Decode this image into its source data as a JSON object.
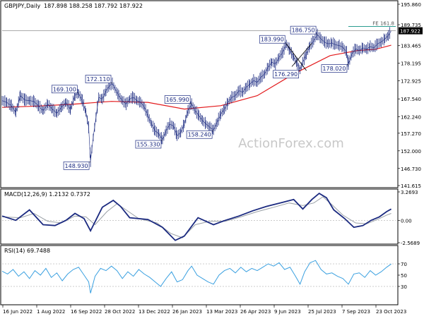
{
  "chart_data": [
    {
      "type": "line",
      "title": "GBPJPY,Daily",
      "quote": "187.898 188.258 187.792 187.922",
      "watermark": "ActionForex.com",
      "ylim": [
        141.615,
        195.86
      ],
      "y_ticks": [
        "195.860",
        "189.735",
        "183.465",
        "178.195",
        "172.925",
        "167.540",
        "162.240",
        "157.270",
        "152.000",
        "146.730",
        "141.615"
      ],
      "x_ticks": [
        "16 Jun 2022",
        "1 Aug 2022",
        "16 Sep 2022",
        "28 Oct 2022",
        "13 Dec 2022",
        "26 Jan 2023",
        "13 Mar 2023",
        "26 Apr 2023",
        "9 Jun 2023",
        "25 Jul 2023",
        "7 Sep 2023",
        "23 Oct 2023"
      ],
      "last_price": "187.922",
      "fe_label": "FE 161.8",
      "fe_value": 189.2,
      "price_path": [
        [
          0,
          167.0
        ],
        [
          5,
          166.5
        ],
        [
          10,
          165.5
        ],
        [
          15,
          163.5
        ],
        [
          20,
          168.5
        ],
        [
          25,
          167.2
        ],
        [
          30,
          167.0
        ],
        [
          35,
          166.8
        ],
        [
          40,
          165.4
        ],
        [
          45,
          164.0
        ],
        [
          50,
          166.0
        ],
        [
          55,
          164.5
        ],
        [
          60,
          163.2
        ],
        [
          65,
          165.0
        ],
        [
          70,
          166.5
        ],
        [
          75,
          164.3
        ],
        [
          80,
          168.7
        ],
        [
          84,
          169.1
        ],
        [
          88,
          167.0
        ],
        [
          92,
          163.5
        ],
        [
          95,
          159.0
        ],
        [
          97,
          148.93
        ],
        [
          100,
          156.0
        ],
        [
          103,
          162.0
        ],
        [
          106,
          168.0
        ],
        [
          110,
          167.5
        ],
        [
          114,
          170.0
        ],
        [
          118,
          171.5
        ],
        [
          121,
          172.11
        ],
        [
          124,
          170.5
        ],
        [
          128,
          168.5
        ],
        [
          132,
          167.0
        ],
        [
          136,
          166.0
        ],
        [
          140,
          167.5
        ],
        [
          144,
          168.0
        ],
        [
          148,
          167.0
        ],
        [
          152,
          166.5
        ],
        [
          156,
          165.2
        ],
        [
          160,
          162.5
        ],
        [
          164,
          160.0
        ],
        [
          168,
          158.0
        ],
        [
          172,
          157.0
        ],
        [
          176,
          155.33
        ],
        [
          180,
          158.0
        ],
        [
          184,
          160.0
        ],
        [
          188,
          159.5
        ],
        [
          192,
          156.5
        ],
        [
          196,
          157.5
        ],
        [
          200,
          160.0
        ],
        [
          204,
          164.0
        ],
        [
          208,
          165.99
        ],
        [
          212,
          164.0
        ],
        [
          216,
          162.5
        ],
        [
          220,
          161.0
        ],
        [
          224,
          160.0
        ],
        [
          228,
          159.0
        ],
        [
          232,
          158.24
        ],
        [
          236,
          160.5
        ],
        [
          240,
          163.0
        ],
        [
          244,
          164.5
        ],
        [
          248,
          166.5
        ],
        [
          252,
          168.0
        ],
        [
          256,
          168.5
        ],
        [
          260,
          170.0
        ],
        [
          264,
          169.5
        ],
        [
          268,
          171.0
        ],
        [
          272,
          172.0
        ],
        [
          276,
          173.0
        ],
        [
          280,
          172.5
        ],
        [
          284,
          174.0
        ],
        [
          288,
          175.0
        ],
        [
          292,
          177.0
        ],
        [
          296,
          178.5
        ],
        [
          300,
          178.0
        ],
        [
          304,
          180.0
        ],
        [
          308,
          181.5
        ],
        [
          312,
          183.99
        ],
        [
          316,
          182.0
        ],
        [
          320,
          180.0
        ],
        [
          324,
          178.0
        ],
        [
          327,
          176.29
        ],
        [
          330,
          178.5
        ],
        [
          334,
          181.0
        ],
        [
          338,
          183.5
        ],
        [
          342,
          185.0
        ],
        [
          346,
          186.75
        ],
        [
          350,
          185.5
        ],
        [
          354,
          184.5
        ],
        [
          358,
          184.0
        ],
        [
          362,
          184.3
        ],
        [
          366,
          183.7
        ],
        [
          370,
          183.5
        ],
        [
          374,
          183.0
        ],
        [
          378,
          181.5
        ],
        [
          380,
          178.02
        ],
        [
          384,
          181.0
        ],
        [
          388,
          182.5
        ],
        [
          392,
          182.0
        ],
        [
          396,
          182.8
        ],
        [
          400,
          182.4
        ],
        [
          404,
          183.2
        ],
        [
          408,
          182.8
        ],
        [
          412,
          184.0
        ],
        [
          416,
          184.5
        ],
        [
          420,
          185.5
        ],
        [
          424,
          186.5
        ],
        [
          427,
          187.922
        ]
      ],
      "ma_path": [
        [
          0,
          165.0
        ],
        [
          40,
          165.4
        ],
        [
          80,
          166.0
        ],
        [
          120,
          166.8
        ],
        [
          160,
          166.5
        ],
        [
          200,
          164.5
        ],
        [
          240,
          165.5
        ],
        [
          280,
          168.5
        ],
        [
          320,
          175.0
        ],
        [
          360,
          180.5
        ],
        [
          390,
          182.0
        ],
        [
          410,
          182.4
        ],
        [
          427,
          183.6
        ]
      ],
      "levels": [
        {
          "label": "169.100",
          "x": 84,
          "value": 169.1,
          "pos": "above"
        },
        {
          "label": "148.930",
          "x": 97,
          "value": 148.93,
          "pos": "below"
        },
        {
          "label": "172.110",
          "x": 121,
          "value": 172.11,
          "pos": "above"
        },
        {
          "label": "155.330",
          "x": 176,
          "value": 155.33,
          "pos": "below"
        },
        {
          "label": "165.990",
          "x": 208,
          "value": 165.99,
          "pos": "above"
        },
        {
          "label": "158.240",
          "x": 232,
          "value": 158.24,
          "pos": "below"
        },
        {
          "label": "183.990",
          "x": 312,
          "value": 183.99,
          "pos": "above"
        },
        {
          "label": "176.290",
          "x": 327,
          "value": 176.29,
          "pos": "below"
        },
        {
          "label": "186.750",
          "x": 346,
          "value": 186.75,
          "pos": "above"
        },
        {
          "label": "178.020",
          "x": 380,
          "value": 178.02,
          "pos": "below"
        }
      ],
      "trendlines": [
        {
          "from": [
            312,
            183.99
          ],
          "to": [
            334,
            176.0
          ]
        },
        {
          "from": [
            318,
            177.2
          ],
          "to": [
            340,
            184.2
          ]
        }
      ]
    },
    {
      "type": "line",
      "title": "MACD(12,26,9) 1.2132 0.7372",
      "ylim": [
        -2.5689,
        3.2693
      ],
      "y_ticks": [
        "3.2693",
        "0.00",
        "-2.5689"
      ],
      "zero": 0,
      "macd_path": [
        [
          0,
          0.5
        ],
        [
          15,
          0.0
        ],
        [
          30,
          1.2
        ],
        [
          45,
          -0.5
        ],
        [
          58,
          -0.6
        ],
        [
          70,
          0.0
        ],
        [
          80,
          0.8
        ],
        [
          90,
          0.2
        ],
        [
          97,
          -1.2
        ],
        [
          110,
          1.5
        ],
        [
          122,
          2.3
        ],
        [
          130,
          1.6
        ],
        [
          140,
          0.3
        ],
        [
          160,
          0.1
        ],
        [
          176,
          -0.8
        ],
        [
          190,
          -2.3
        ],
        [
          200,
          -1.8
        ],
        [
          215,
          0.3
        ],
        [
          232,
          -0.5
        ],
        [
          245,
          0.0
        ],
        [
          260,
          0.5
        ],
        [
          275,
          1.1
        ],
        [
          290,
          1.6
        ],
        [
          305,
          2.0
        ],
        [
          320,
          2.4
        ],
        [
          330,
          1.3
        ],
        [
          340,
          2.4
        ],
        [
          348,
          3.1
        ],
        [
          356,
          2.6
        ],
        [
          364,
          1.2
        ],
        [
          376,
          0.2
        ],
        [
          386,
          -0.8
        ],
        [
          396,
          -0.6
        ],
        [
          405,
          0.0
        ],
        [
          414,
          0.4
        ],
        [
          422,
          1.0
        ],
        [
          427,
          1.3
        ]
      ],
      "signal_path": [
        [
          0,
          0.4
        ],
        [
          20,
          0.3
        ],
        [
          35,
          0.8
        ],
        [
          50,
          -0.1
        ],
        [
          65,
          -0.3
        ],
        [
          80,
          0.5
        ],
        [
          92,
          0.4
        ],
        [
          102,
          -0.5
        ],
        [
          115,
          1.0
        ],
        [
          126,
          1.9
        ],
        [
          136,
          1.2
        ],
        [
          150,
          0.2
        ],
        [
          170,
          -0.3
        ],
        [
          185,
          -1.5
        ],
        [
          198,
          -2.0
        ],
        [
          212,
          -0.5
        ],
        [
          228,
          -0.1
        ],
        [
          245,
          -0.1
        ],
        [
          262,
          0.4
        ],
        [
          280,
          1.0
        ],
        [
          298,
          1.5
        ],
        [
          315,
          2.0
        ],
        [
          330,
          1.7
        ],
        [
          342,
          2.0
        ],
        [
          352,
          2.7
        ],
        [
          362,
          1.8
        ],
        [
          374,
          0.6
        ],
        [
          388,
          -0.3
        ],
        [
          400,
          -0.4
        ],
        [
          412,
          0.1
        ],
        [
          422,
          0.6
        ],
        [
          427,
          0.8
        ]
      ]
    },
    {
      "type": "line",
      "title": "RSI(14) 69.7488",
      "ylim": [
        0,
        100
      ],
      "y_ticks": [
        "70",
        "50",
        "30"
      ],
      "rsi_path": [
        [
          0,
          57
        ],
        [
          6,
          52
        ],
        [
          12,
          60
        ],
        [
          18,
          48
        ],
        [
          24,
          56
        ],
        [
          30,
          44
        ],
        [
          36,
          58
        ],
        [
          42,
          50
        ],
        [
          48,
          62
        ],
        [
          54,
          46
        ],
        [
          60,
          54
        ],
        [
          66,
          40
        ],
        [
          72,
          52
        ],
        [
          78,
          60
        ],
        [
          84,
          64
        ],
        [
          90,
          50
        ],
        [
          95,
          38
        ],
        [
          97,
          18
        ],
        [
          102,
          48
        ],
        [
          108,
          62
        ],
        [
          114,
          58
        ],
        [
          120,
          66
        ],
        [
          126,
          58
        ],
        [
          132,
          44
        ],
        [
          138,
          56
        ],
        [
          144,
          48
        ],
        [
          150,
          60
        ],
        [
          156,
          52
        ],
        [
          162,
          46
        ],
        [
          168,
          38
        ],
        [
          174,
          30
        ],
        [
          180,
          44
        ],
        [
          186,
          56
        ],
        [
          192,
          38
        ],
        [
          198,
          42
        ],
        [
          204,
          58
        ],
        [
          208,
          66
        ],
        [
          214,
          50
        ],
        [
          220,
          44
        ],
        [
          226,
          38
        ],
        [
          232,
          34
        ],
        [
          238,
          50
        ],
        [
          244,
          58
        ],
        [
          250,
          62
        ],
        [
          256,
          54
        ],
        [
          262,
          64
        ],
        [
          268,
          56
        ],
        [
          274,
          62
        ],
        [
          280,
          58
        ],
        [
          286,
          64
        ],
        [
          292,
          70
        ],
        [
          298,
          66
        ],
        [
          304,
          72
        ],
        [
          310,
          60
        ],
        [
          316,
          64
        ],
        [
          322,
          48
        ],
        [
          327,
          34
        ],
        [
          332,
          56
        ],
        [
          338,
          72
        ],
        [
          344,
          76
        ],
        [
          350,
          60
        ],
        [
          356,
          52
        ],
        [
          362,
          54
        ],
        [
          368,
          48
        ],
        [
          374,
          44
        ],
        [
          380,
          34
        ],
        [
          386,
          52
        ],
        [
          392,
          54
        ],
        [
          398,
          46
        ],
        [
          404,
          58
        ],
        [
          410,
          50
        ],
        [
          416,
          56
        ],
        [
          422,
          64
        ],
        [
          427,
          69.7
        ]
      ]
    }
  ]
}
